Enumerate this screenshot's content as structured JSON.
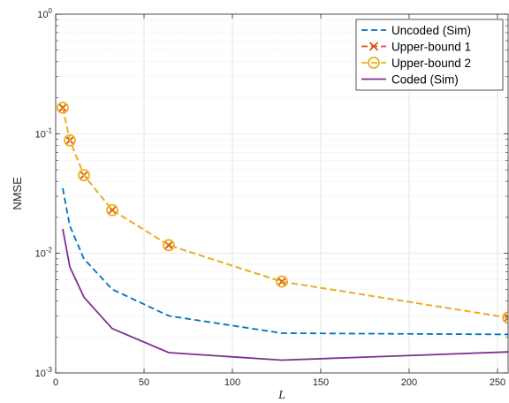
{
  "chart_data": {
    "type": "line",
    "xlabel": "L",
    "ylabel": "NMSE",
    "xlim": [
      0,
      256
    ],
    "ylim": [
      0.001,
      1
    ],
    "yscale": "log",
    "grid": true,
    "legend_position": "top-right",
    "x_ticks": [
      0,
      50,
      100,
      150,
      200,
      250
    ],
    "y_ticks": [
      {
        "value": 0.001,
        "base": "10",
        "exp": "-3"
      },
      {
        "value": 0.01,
        "base": "10",
        "exp": "-2"
      },
      {
        "value": 0.1,
        "base": "10",
        "exp": "-1"
      },
      {
        "value": 1,
        "base": "10",
        "exp": "0"
      }
    ],
    "series": [
      {
        "name": "Uncoded (Sim)",
        "color": "#0072BD",
        "dash": "dashed",
        "marker": "none",
        "x": [
          4,
          8,
          16,
          32,
          64,
          128,
          256
        ],
        "y": [
          0.035,
          0.017,
          0.009,
          0.005,
          0.003,
          0.00215,
          0.0021
        ]
      },
      {
        "name": "Upper-bound 1",
        "color": "#D95319",
        "dash": "dashed",
        "marker": "x",
        "x": [
          4,
          8,
          16,
          32,
          64,
          128,
          256
        ],
        "y": [
          0.165,
          0.088,
          0.045,
          0.023,
          0.0117,
          0.0058,
          0.0029
        ]
      },
      {
        "name": "Upper-bound 2",
        "color": "#EDB120",
        "dash": "dashed",
        "marker": "o",
        "x": [
          4,
          8,
          16,
          32,
          64,
          128,
          256
        ],
        "y": [
          0.165,
          0.088,
          0.045,
          0.023,
          0.0117,
          0.0058,
          0.0029
        ]
      },
      {
        "name": "Coded (Sim)",
        "color": "#7E2F8E",
        "dash": "solid",
        "marker": "none",
        "x": [
          4,
          8,
          16,
          32,
          64,
          128,
          256
        ],
        "y": [
          0.016,
          0.0077,
          0.0043,
          0.00235,
          0.00148,
          0.00128,
          0.0015
        ]
      }
    ]
  }
}
